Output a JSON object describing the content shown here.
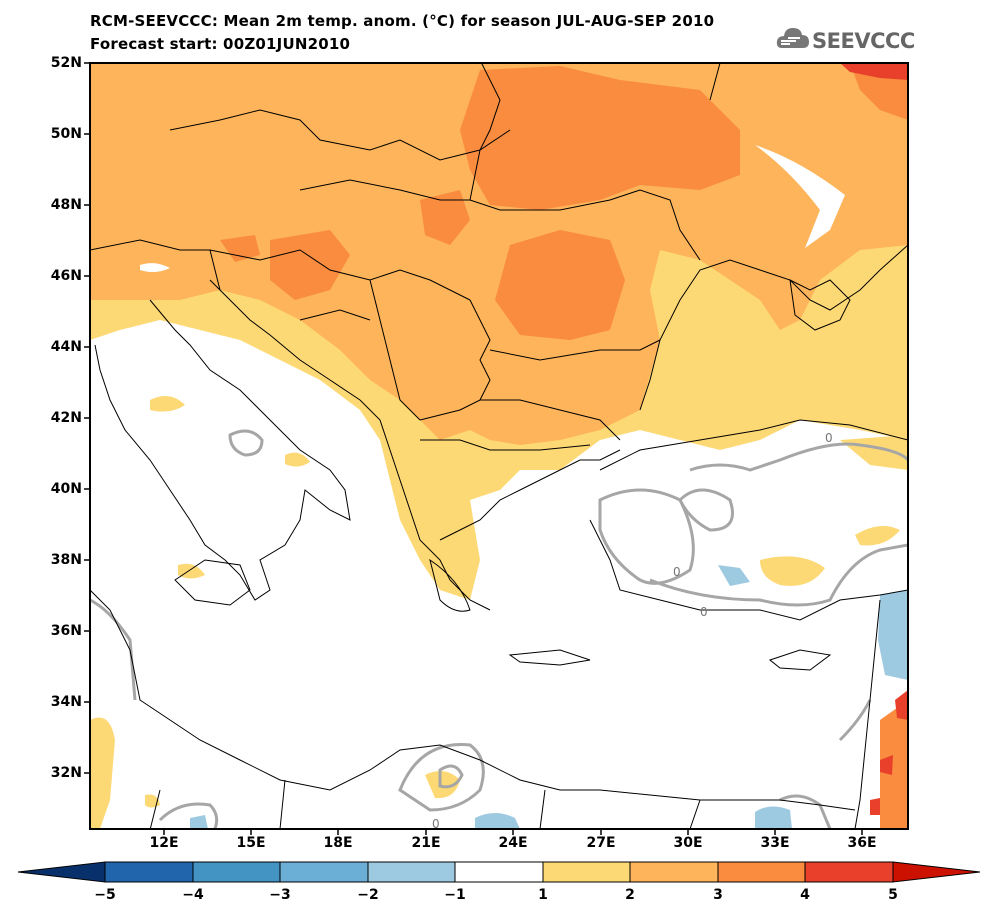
{
  "header": {
    "title_line1": "RCM-SEEVCCC: Mean 2m temp. anom. (°C) for season JUL-AUG-SEP 2010",
    "title_line2": "Forecast start: 00Z01JUN2010",
    "logo_text": "SEEVCCC"
  },
  "map": {
    "lat_labels": [
      "52N",
      "50N",
      "48N",
      "46N",
      "44N",
      "42N",
      "40N",
      "38N",
      "36N",
      "34N",
      "32N"
    ],
    "lon_labels": [
      "12E",
      "15E",
      "18E",
      "21E",
      "24E",
      "27E",
      "30E",
      "33E",
      "36E"
    ],
    "contour_labels": [
      "0",
      "0",
      "0",
      "0"
    ]
  },
  "colorbar": {
    "labels": [
      "−5",
      "−4",
      "−3",
      "−2",
      "−1",
      "1",
      "2",
      "3",
      "4",
      "5"
    ],
    "colors": [
      "#08306b",
      "#2166ac",
      "#4393c3",
      "#6baed6",
      "#9ecae1",
      "#ffffff",
      "#fdd976",
      "#fdb45a",
      "#f98c3e",
      "#e8402a",
      "#cc1100"
    ]
  },
  "colors": {
    "anom_1_2": "#fdd976",
    "anom_2_3": "#fdb45a",
    "anom_3_4": "#f98c3e",
    "anom_4_5": "#e8402a",
    "anom_neg_1_2": "#9ecae1",
    "anom_neg_2_3": "#6baed6",
    "contour": "#a6a6a6",
    "border": "#000000"
  }
}
